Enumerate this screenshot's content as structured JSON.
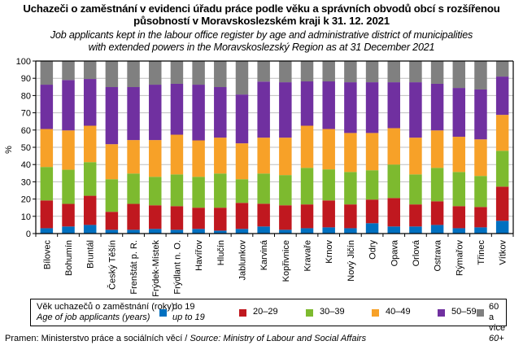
{
  "title": "Uchazeči o zaměstnání v evidenci úřadu práce podle věku a správních obvodů obcí s rozšířenou působností v Moravskoslezském kraji k 31. 12. 2021",
  "title_line1": "Uchazeči o zaměstnání v evidenci úřadu práce podle věku a správních  obvodů obcí s rozšířenou",
  "title_line2": "působností  v Moravskoslezském  kraji k 31. 12. 2021",
  "subtitle_line1": "Job applicants kept in the labour office register by age and administrative district of municipalities",
  "subtitle_line2": "with extended powers in the Moravskoslezský Region as at 31 December 2021",
  "legend": {
    "title_cs": "Věk uchazečů o zaměstnání (roky)",
    "title_en": "Age of job applicants (years)",
    "items": [
      {
        "label_cs": "do 19",
        "label_en": "up to 19",
        "color": "#0070C0"
      },
      {
        "label_cs": "20–29",
        "label_en": "",
        "color": "#C0181F"
      },
      {
        "label_cs": "30–39",
        "label_en": "",
        "color": "#7DBA2F"
      },
      {
        "label_cs": "40–49",
        "label_en": "",
        "color": "#F7A128"
      },
      {
        "label_cs": "50–59",
        "label_en": "",
        "color": "#7030A0"
      },
      {
        "label_cs": "60 a více",
        "label_en": "60+",
        "color": "#808080"
      }
    ]
  },
  "source": {
    "cs": "Pramen:  Ministerstvo práce a sociálních věcí / ",
    "en": "Source: Ministry of Labour and Social Affairs"
  },
  "chart_data": {
    "type": "bar",
    "stacked": true,
    "title": "Uchazeči o zaměstnání v evidenci úřadu práce podle věku a správních obvodů obcí s rozšířenou působností v Moravskoslezském kraji k 31. 12. 2021",
    "xlabel": "",
    "ylabel": "%",
    "ylim": [
      0,
      100
    ],
    "yticks": [
      0,
      10,
      20,
      30,
      40,
      50,
      60,
      70,
      80,
      90,
      100
    ],
    "grid": true,
    "legend_position": "bottom",
    "categories": [
      "Bílovec",
      "Bohumín",
      "Bruntál",
      "Český Těšín",
      "Frenštát p. R.",
      "Frýdek-Místek",
      "Frýdlant n. O.",
      "Havířov",
      "Hlučín",
      "Jablunkov",
      "Karviná",
      "Kopřivnice",
      "Kravaře",
      "Krnov",
      "Nový Jičín",
      "Odry",
      "Opava",
      "Orlová",
      "Ostrava",
      "Rýmařov",
      "Třinec",
      "Vítkov"
    ],
    "series": [
      {
        "name": "do 19 / up to 19",
        "color": "#0070C0",
        "values": [
          3.1,
          4.1,
          5.0,
          2.2,
          2.2,
          2.7,
          2.2,
          2.7,
          1.7,
          2.7,
          4.1,
          2.2,
          3.1,
          3.6,
          3.1,
          6.0,
          4.1,
          4.1,
          5.0,
          3.1,
          3.6,
          7.4
        ]
      },
      {
        "name": "20–29",
        "color": "#C0181F",
        "values": [
          16.1,
          13.1,
          16.9,
          10.4,
          15.0,
          13.7,
          13.7,
          12.3,
          13.3,
          15.1,
          13.2,
          14.2,
          13.8,
          15.6,
          13.8,
          13.7,
          16.5,
          12.8,
          13.7,
          12.8,
          11.8,
          19.8
        ]
      },
      {
        "name": "30–39",
        "color": "#7DBA2F",
        "values": [
          19.4,
          19.8,
          19.5,
          18.9,
          17.6,
          16.5,
          18.4,
          17.9,
          19.8,
          13.7,
          17.5,
          17.5,
          21.2,
          18.0,
          18.8,
          17.0,
          19.4,
          17.4,
          19.4,
          19.8,
          18.0,
          20.8
        ]
      },
      {
        "name": "40–49",
        "color": "#F7A128",
        "values": [
          22.0,
          22.8,
          21.1,
          20.3,
          19.4,
          21.3,
          23.0,
          21.1,
          20.8,
          20.8,
          20.8,
          21.7,
          24.4,
          23.4,
          22.6,
          21.6,
          21.1,
          21.3,
          21.7,
          20.4,
          21.2,
          20.8
        ]
      },
      {
        "name": "50–59",
        "color": "#7030A0",
        "values": [
          25.7,
          29.2,
          27.1,
          33.1,
          30.7,
          32.1,
          29.5,
          32.3,
          29.3,
          28.3,
          32.5,
          32.1,
          25.7,
          27.6,
          29.4,
          29.4,
          26.6,
          32.1,
          27.0,
          28.3,
          28.9,
          22.2
        ]
      },
      {
        "name": "60 a více / 60+",
        "color": "#808080",
        "values": [
          13.7,
          11.0,
          10.4,
          15.1,
          15.1,
          13.7,
          13.2,
          13.7,
          15.1,
          19.4,
          11.9,
          12.3,
          11.8,
          11.8,
          12.3,
          12.3,
          12.3,
          12.3,
          13.2,
          15.6,
          16.5,
          9.0
        ]
      }
    ]
  }
}
